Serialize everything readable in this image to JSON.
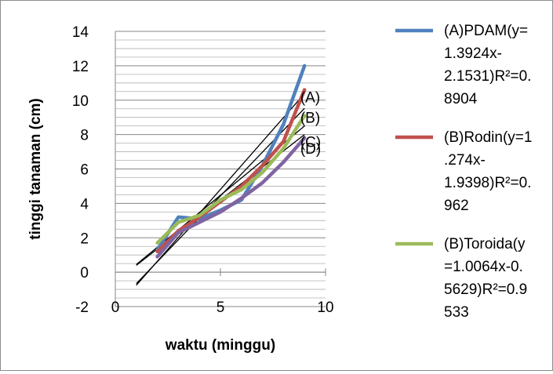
{
  "chart_data": {
    "type": "line",
    "title": "",
    "xlabel": "waktu (minggu)",
    "ylabel": "tinggi tanaman (cm)",
    "xlim": [
      0,
      10
    ],
    "ylim": [
      -2,
      14
    ],
    "x_ticks": [
      "0",
      "5",
      "10"
    ],
    "y_ticks": [
      "-2",
      "0",
      "2",
      "4",
      "6",
      "8",
      "10",
      "12",
      "14"
    ],
    "grid": "horizontal",
    "legend_position": "right",
    "series": [
      {
        "name": "(A)PDAM(y=1.3924x-2.1531)R²=0.8904",
        "legend_lines": [
          "(A)PDAM(y=",
          "1.3924x-",
          "2.1531)R²=0.",
          "8904"
        ],
        "color": "#4f81bd",
        "x": [
          2,
          3,
          4,
          5,
          6,
          7,
          8,
          9
        ],
        "y": [
          1.3,
          3.2,
          3.1,
          3.6,
          4.2,
          6.2,
          8.6,
          12.0
        ]
      },
      {
        "name": "(B)Rodin(y=1.274x-1.9398)R²=0.962",
        "legend_lines": [
          "(B)Rodin(y=1",
          ".274x-",
          "1.9398)R²=0.",
          "962"
        ],
        "color": "#c0504d",
        "x": [
          2,
          3,
          4,
          5,
          6,
          7,
          8,
          9
        ],
        "y": [
          1.2,
          2.4,
          3.2,
          4.1,
          5.0,
          6.2,
          7.6,
          10.6
        ]
      },
      {
        "name": "(B)Toroida(y=1.0064x-0.5629)R²=0.9533",
        "legend_lines": [
          "(B)Toroida(y",
          "=1.0064x-0.",
          "5629)R²=0.9",
          "533"
        ],
        "color": "#9bbb59",
        "x": [
          2,
          3,
          4,
          5,
          6,
          7,
          8,
          9
        ],
        "y": [
          1.7,
          2.9,
          3.3,
          4.2,
          4.8,
          5.8,
          7.2,
          9.1
        ]
      },
      {
        "name": "(D)",
        "color": "#8064a2",
        "x": [
          2,
          3,
          4,
          5,
          6,
          7,
          8,
          9
        ],
        "y": [
          0.9,
          2.3,
          2.9,
          3.5,
          4.3,
          5.2,
          6.4,
          7.8
        ]
      }
    ],
    "trendlines": [
      {
        "label": "(A)",
        "slope": 1.3924,
        "intercept": -2.1531,
        "x_range": [
          1,
          9
        ]
      },
      {
        "label": "(B)",
        "slope": 1.274,
        "intercept": -1.9398,
        "x_range": [
          1,
          9
        ]
      },
      {
        "label": "(C)",
        "slope": 1.0064,
        "intercept": -0.5629,
        "x_range": [
          1,
          9
        ]
      },
      {
        "label": "(D)",
        "slope": 0.95,
        "intercept": -0.55,
        "x_range": [
          1,
          9
        ]
      }
    ]
  }
}
